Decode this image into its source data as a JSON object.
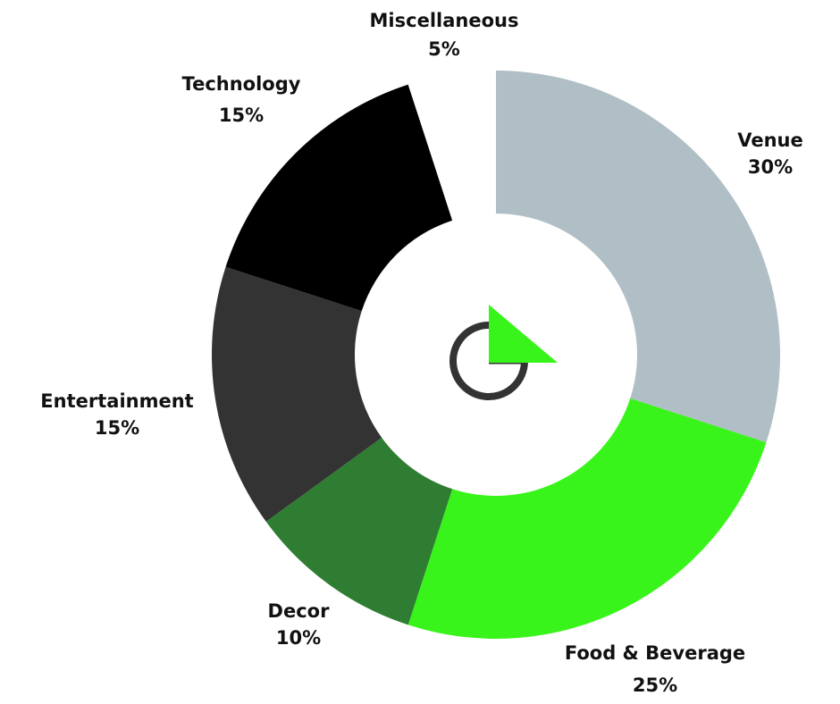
{
  "chart_data": {
    "type": "pie",
    "donut": true,
    "categories": [
      "Venue",
      "Food & Beverage",
      "Decor",
      "Entertainment",
      "Technology",
      "Miscellaneous"
    ],
    "values": [
      30,
      25,
      10,
      15,
      15,
      5
    ],
    "value_labels": [
      "30%",
      "25%",
      "10%",
      "15%",
      "15%",
      "5%"
    ],
    "colors": [
      "#b0bec5",
      "#39f41a",
      "#2e7d32",
      "#333333",
      "#000000",
      "#ffffff"
    ],
    "title": "",
    "legend": "none"
  },
  "logo": {
    "icon": "g-arrow-logo-icon",
    "ring_color": "#333333",
    "accent_color": "#39f41a"
  }
}
